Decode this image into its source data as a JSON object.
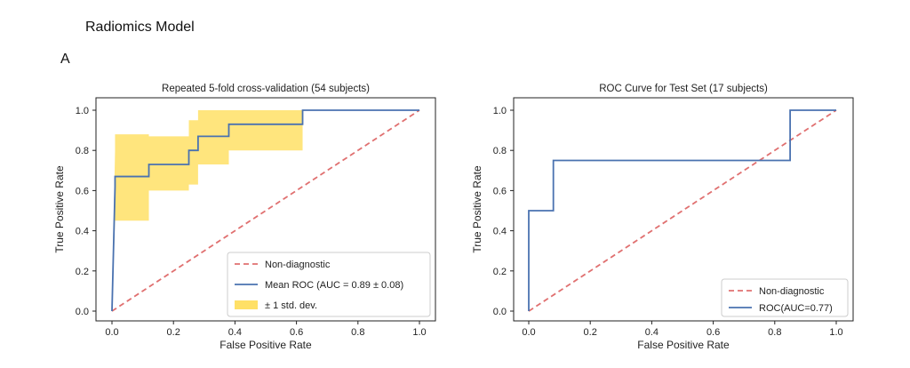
{
  "figure": {
    "title": "Radiomics Model",
    "panel_label": "A"
  },
  "chart_data": [
    {
      "type": "line",
      "title": "Repeated 5-fold cross-validation (54 subjects)",
      "xlabel": "False Positive Rate",
      "ylabel": "True Positive Rate",
      "xlim": [
        0,
        1
      ],
      "ylim": [
        0,
        1
      ],
      "xticks": [
        "0.0",
        "0.2",
        "0.4",
        "0.6",
        "0.8",
        "1.0"
      ],
      "yticks": [
        "0.0",
        "0.2",
        "0.4",
        "0.6",
        "0.8",
        "1.0"
      ],
      "grid": false,
      "legend_position": "lower-right",
      "series": [
        {
          "name": "Non-diagnostic",
          "style": "dashed",
          "color": "#e07070",
          "x": [
            0,
            1
          ],
          "y": [
            0,
            1
          ]
        },
        {
          "name": "Mean ROC (AUC = 0.89 ± 0.08)",
          "style": "solid",
          "color": "#4a72b0",
          "x": [
            0,
            0.01,
            0.01,
            0.12,
            0.12,
            0.25,
            0.25,
            0.28,
            0.28,
            0.38,
            0.38,
            0.62,
            0.62,
            1.0
          ],
          "y": [
            0,
            0.62,
            0.67,
            0.67,
            0.73,
            0.73,
            0.8,
            0.8,
            0.87,
            0.87,
            0.93,
            0.93,
            1.0,
            1.0
          ]
        },
        {
          "name": "± 1 std. dev.",
          "style": "band",
          "color": "#ffe066",
          "x": [
            0,
            0.01,
            0.01,
            0.12,
            0.12,
            0.25,
            0.25,
            0.28,
            0.28,
            0.38,
            0.38,
            0.62,
            0.62,
            1.0
          ],
          "upper": [
            0,
            0.8,
            0.88,
            0.88,
            0.87,
            0.87,
            0.95,
            0.95,
            1.0,
            1.0,
            1.0,
            1.0,
            1.0,
            1.0
          ],
          "lower": [
            0,
            0.45,
            0.45,
            0.45,
            0.6,
            0.6,
            0.63,
            0.63,
            0.73,
            0.73,
            0.8,
            0.8,
            1.0,
            1.0
          ]
        }
      ]
    },
    {
      "type": "line",
      "title": "ROC Curve for Test Set (17 subjects)",
      "xlabel": "False Positive Rate",
      "ylabel": "True Positive Rate",
      "xlim": [
        0,
        1
      ],
      "ylim": [
        0,
        1
      ],
      "xticks": [
        "0.0",
        "0.2",
        "0.4",
        "0.6",
        "0.8",
        "1.0"
      ],
      "yticks": [
        "0.0",
        "0.2",
        "0.4",
        "0.6",
        "0.8",
        "1.0"
      ],
      "grid": false,
      "legend_position": "lower-right",
      "series": [
        {
          "name": "Non-diagnostic",
          "style": "dashed",
          "color": "#e07070",
          "x": [
            0,
            1
          ],
          "y": [
            0,
            1
          ]
        },
        {
          "name": "ROC(AUC=0.77)",
          "style": "solid",
          "color": "#4a72b0",
          "x": [
            0,
            0,
            0.08,
            0.08,
            0.85,
            0.85,
            1.0
          ],
          "y": [
            0,
            0.5,
            0.5,
            0.75,
            0.75,
            1.0,
            1.0
          ]
        }
      ]
    }
  ]
}
